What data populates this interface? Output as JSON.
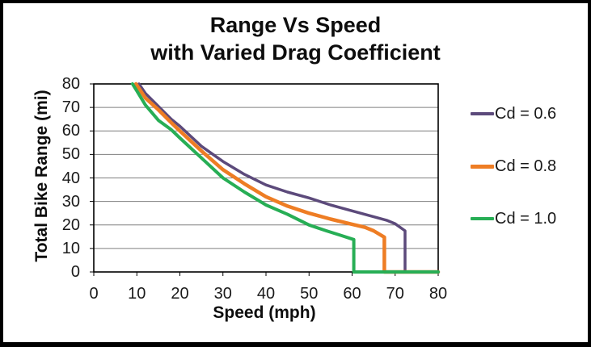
{
  "title": {
    "line1": "Range Vs Speed",
    "line2": "with Varied Drag Coefficient"
  },
  "chart_data": {
    "type": "line",
    "title": "Range Vs Speed with Varied Drag Coefficient",
    "xlabel": "Speed (mph)",
    "ylabel": "Total Bike Range (mi)",
    "xlim": [
      0,
      80
    ],
    "ylim": [
      0,
      80
    ],
    "x_ticks": [
      0,
      10,
      20,
      30,
      40,
      50,
      60,
      70,
      80
    ],
    "y_ticks": [
      0,
      10,
      20,
      30,
      40,
      50,
      60,
      70,
      80
    ],
    "grid": "horizontal",
    "grid_color": "#7f7f7f",
    "axis_color": "#000000",
    "legend_position": "right",
    "series": [
      {
        "name": "Cd = 0.6",
        "color": "#5C4A7B",
        "stroke_width": 3.5,
        "points": [
          [
            10.5,
            80
          ],
          [
            12,
            76
          ],
          [
            15,
            70.5
          ],
          [
            18,
            65
          ],
          [
            20,
            62
          ],
          [
            25,
            53.5
          ],
          [
            30,
            47
          ],
          [
            35,
            41.5
          ],
          [
            40,
            37
          ],
          [
            45,
            34
          ],
          [
            50,
            31.5
          ],
          [
            55,
            28.5
          ],
          [
            60,
            26
          ],
          [
            65,
            23.5
          ],
          [
            68,
            22
          ],
          [
            70,
            20.5
          ],
          [
            72.3,
            17.5
          ],
          [
            72.3,
            0
          ],
          [
            80,
            0
          ]
        ]
      },
      {
        "name": "Cd = 0.8",
        "color": "#EE7D24",
        "stroke_width": 4.5,
        "points": [
          [
            9.8,
            80
          ],
          [
            12,
            74
          ],
          [
            15,
            69
          ],
          [
            18,
            63.5
          ],
          [
            20,
            60
          ],
          [
            25,
            51.5
          ],
          [
            30,
            43.5
          ],
          [
            35,
            37.5
          ],
          [
            40,
            32
          ],
          [
            45,
            28
          ],
          [
            50,
            25
          ],
          [
            55,
            22.5
          ],
          [
            60,
            20.3
          ],
          [
            63,
            19
          ],
          [
            65,
            17.5
          ],
          [
            67.5,
            14.8
          ],
          [
            67.5,
            0
          ],
          [
            80,
            0
          ]
        ]
      },
      {
        "name": "Cd = 1.0",
        "color": "#27AE55",
        "stroke_width": 4,
        "points": [
          [
            9.0,
            80
          ],
          [
            10,
            77
          ],
          [
            12,
            71
          ],
          [
            15,
            64.5
          ],
          [
            18,
            60.5
          ],
          [
            20,
            57
          ],
          [
            25,
            48.5
          ],
          [
            30,
            40
          ],
          [
            35,
            34
          ],
          [
            40,
            28.5
          ],
          [
            45,
            24.5
          ],
          [
            50,
            20
          ],
          [
            54,
            17.5
          ],
          [
            57,
            15.8
          ],
          [
            60,
            14
          ],
          [
            60.4,
            13.8
          ],
          [
            60.4,
            0
          ],
          [
            80,
            0
          ]
        ]
      }
    ]
  },
  "legend": {
    "items": [
      {
        "label": "Cd = 0.6",
        "color": "#5C4A7B"
      },
      {
        "label": "Cd = 0.8",
        "color": "#EE7D24"
      },
      {
        "label": "Cd = 1.0",
        "color": "#27AE55"
      }
    ]
  }
}
